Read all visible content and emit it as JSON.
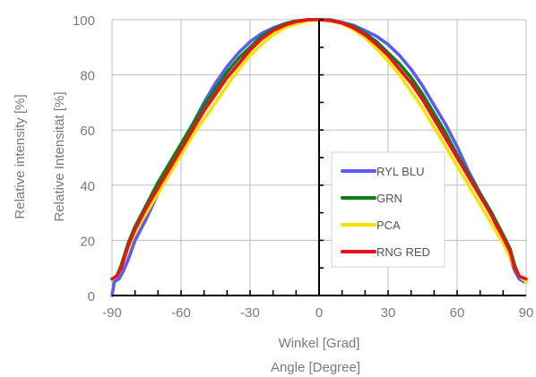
{
  "chart_data": {
    "type": "line",
    "xlabel": "Winkel [Grad]",
    "xlabel_secondary": "Angle [Degree]",
    "ylabel": "Relative Intensität [%]",
    "ylabel_secondary": "Relative intensity [%]",
    "xlim": [
      -90,
      90
    ],
    "ylim": [
      0,
      100
    ],
    "x_ticks": [
      -90,
      -60,
      -30,
      0,
      30,
      60,
      90
    ],
    "y_ticks": [
      0,
      20,
      40,
      60,
      80,
      100
    ],
    "x_tick_labels": [
      "-90",
      "-60",
      "-30",
      "0",
      "30",
      "60",
      "90"
    ],
    "y_tick_labels": [
      "0",
      "20",
      "40",
      "60",
      "80",
      "100"
    ],
    "grid": true,
    "legend_position": "lower-right",
    "series": [
      {
        "name": "RYL BLU",
        "color": "#5a5cf0",
        "points": [
          [
            -90,
            0
          ],
          [
            -89,
            5
          ],
          [
            -87,
            6
          ],
          [
            -85,
            9
          ],
          [
            -83,
            13
          ],
          [
            -80,
            20
          ],
          [
            -75,
            28
          ],
          [
            -70,
            37
          ],
          [
            -65,
            45
          ],
          [
            -60,
            54
          ],
          [
            -55,
            62
          ],
          [
            -50,
            70
          ],
          [
            -45,
            77
          ],
          [
            -40,
            83
          ],
          [
            -35,
            88
          ],
          [
            -30,
            92
          ],
          [
            -25,
            95
          ],
          [
            -20,
            97
          ],
          [
            -15,
            98.5
          ],
          [
            -10,
            99.5
          ],
          [
            -5,
            100
          ],
          [
            0,
            100
          ],
          [
            5,
            100
          ],
          [
            10,
            99
          ],
          [
            15,
            98
          ],
          [
            20,
            96
          ],
          [
            25,
            94
          ],
          [
            30,
            91
          ],
          [
            35,
            87
          ],
          [
            40,
            82
          ],
          [
            45,
            76
          ],
          [
            50,
            69
          ],
          [
            55,
            62
          ],
          [
            60,
            54
          ],
          [
            65,
            45
          ],
          [
            70,
            37
          ],
          [
            75,
            29
          ],
          [
            80,
            20
          ],
          [
            83,
            14
          ],
          [
            85,
            9
          ],
          [
            87,
            6
          ],
          [
            89,
            5
          ],
          [
            90,
            5
          ]
        ]
      },
      {
        "name": "GRN",
        "color": "#0e7d1a",
        "points": [
          [
            -90,
            6
          ],
          [
            -88,
            7
          ],
          [
            -86,
            11
          ],
          [
            -83,
            19
          ],
          [
            -80,
            25
          ],
          [
            -75,
            33
          ],
          [
            -70,
            41
          ],
          [
            -65,
            48
          ],
          [
            -60,
            55
          ],
          [
            -55,
            62
          ],
          [
            -50,
            69
          ],
          [
            -45,
            75
          ],
          [
            -40,
            81
          ],
          [
            -35,
            86
          ],
          [
            -30,
            90
          ],
          [
            -25,
            94
          ],
          [
            -20,
            96.5
          ],
          [
            -15,
            98.5
          ],
          [
            -10,
            99.5
          ],
          [
            -5,
            100
          ],
          [
            0,
            100
          ],
          [
            5,
            99.8
          ],
          [
            10,
            99
          ],
          [
            15,
            97.5
          ],
          [
            20,
            95
          ],
          [
            25,
            92
          ],
          [
            30,
            88
          ],
          [
            35,
            84
          ],
          [
            40,
            79
          ],
          [
            45,
            73
          ],
          [
            50,
            66
          ],
          [
            55,
            59
          ],
          [
            60,
            51
          ],
          [
            65,
            44
          ],
          [
            70,
            37
          ],
          [
            75,
            30
          ],
          [
            80,
            22
          ],
          [
            83,
            17
          ],
          [
            85,
            11
          ],
          [
            87,
            7
          ],
          [
            90,
            5
          ]
        ]
      },
      {
        "name": "PCA",
        "color": "#ffe000",
        "points": [
          [
            -90,
            6
          ],
          [
            -88,
            7
          ],
          [
            -86,
            10
          ],
          [
            -83,
            17
          ],
          [
            -80,
            23
          ],
          [
            -75,
            30
          ],
          [
            -70,
            37
          ],
          [
            -65,
            44
          ],
          [
            -60,
            51
          ],
          [
            -55,
            58
          ],
          [
            -50,
            64
          ],
          [
            -45,
            70
          ],
          [
            -40,
            76
          ],
          [
            -35,
            82
          ],
          [
            -30,
            87
          ],
          [
            -25,
            91
          ],
          [
            -20,
            94.5
          ],
          [
            -15,
            97
          ],
          [
            -10,
            98.5
          ],
          [
            -5,
            99.5
          ],
          [
            0,
            100
          ],
          [
            5,
            99.5
          ],
          [
            10,
            98.5
          ],
          [
            15,
            96.5
          ],
          [
            20,
            93.5
          ],
          [
            25,
            89.5
          ],
          [
            30,
            85
          ],
          [
            35,
            80
          ],
          [
            40,
            74
          ],
          [
            45,
            68
          ],
          [
            50,
            61
          ],
          [
            55,
            54
          ],
          [
            60,
            47
          ],
          [
            65,
            40
          ],
          [
            70,
            33
          ],
          [
            75,
            26
          ],
          [
            80,
            19
          ],
          [
            83,
            14
          ],
          [
            85,
            10
          ],
          [
            87,
            7
          ],
          [
            90,
            5
          ]
        ]
      },
      {
        "name": "RNG RED",
        "color": "#e8131a",
        "points": [
          [
            -90,
            6
          ],
          [
            -88,
            7
          ],
          [
            -86,
            10
          ],
          [
            -83,
            18
          ],
          [
            -80,
            24
          ],
          [
            -75,
            32
          ],
          [
            -70,
            39
          ],
          [
            -65,
            46
          ],
          [
            -60,
            53
          ],
          [
            -55,
            60
          ],
          [
            -50,
            67
          ],
          [
            -45,
            73
          ],
          [
            -40,
            79
          ],
          [
            -35,
            84
          ],
          [
            -30,
            89
          ],
          [
            -25,
            93
          ],
          [
            -20,
            96
          ],
          [
            -15,
            98
          ],
          [
            -10,
            99.3
          ],
          [
            -5,
            100
          ],
          [
            0,
            100
          ],
          [
            5,
            99.7
          ],
          [
            10,
            98.8
          ],
          [
            15,
            97
          ],
          [
            20,
            94.5
          ],
          [
            25,
            91
          ],
          [
            30,
            87
          ],
          [
            35,
            82
          ],
          [
            40,
            77
          ],
          [
            45,
            71
          ],
          [
            50,
            64
          ],
          [
            55,
            57
          ],
          [
            60,
            50
          ],
          [
            65,
            43
          ],
          [
            70,
            36
          ],
          [
            75,
            29
          ],
          [
            80,
            21
          ],
          [
            83,
            16
          ],
          [
            85,
            10
          ],
          [
            87,
            7
          ],
          [
            90,
            6
          ]
        ]
      }
    ]
  }
}
